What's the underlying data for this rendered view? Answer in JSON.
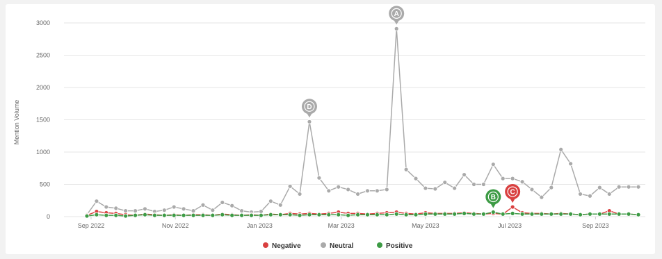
{
  "chart_data": {
    "type": "line",
    "ylabel": "Mention Volume",
    "ylim": [
      0,
      3000
    ],
    "y_ticks": [
      "0",
      "500",
      "1000",
      "1500",
      "2000",
      "2500",
      "3000"
    ],
    "x_ticks": [
      "Sep 2022",
      "Nov 2022",
      "Jan 2023",
      "Mar 2023",
      "May 2023",
      "Jul 2023",
      "Sep 2023"
    ],
    "x_range": [
      "2022-08-29",
      "2023-10-02"
    ],
    "grid": "horizontal",
    "legend": "bottom-center",
    "series": [
      {
        "name": "Neutral",
        "color": "#aaaaaa",
        "x": [
          "2022-08-29",
          "2022-09-05",
          "2022-09-12",
          "2022-09-19",
          "2022-09-26",
          "2022-10-03",
          "2022-10-10",
          "2022-10-17",
          "2022-10-24",
          "2022-10-31",
          "2022-11-07",
          "2022-11-14",
          "2022-11-21",
          "2022-11-28",
          "2022-12-05",
          "2022-12-12",
          "2022-12-19",
          "2022-12-26",
          "2023-01-02",
          "2023-01-09",
          "2023-01-16",
          "2023-01-23",
          "2023-01-30",
          "2023-02-06",
          "2023-02-13",
          "2023-02-20",
          "2023-02-27",
          "2023-03-06",
          "2023-03-13",
          "2023-03-20",
          "2023-03-27",
          "2023-04-03",
          "2023-04-10",
          "2023-04-17",
          "2023-04-24",
          "2023-05-01",
          "2023-05-08",
          "2023-05-15",
          "2023-05-22",
          "2023-05-29",
          "2023-06-05",
          "2023-06-12",
          "2023-06-19",
          "2023-06-26",
          "2023-07-03",
          "2023-07-10",
          "2023-07-17",
          "2023-07-24",
          "2023-07-31",
          "2023-08-07",
          "2023-08-14",
          "2023-08-21",
          "2023-08-28",
          "2023-09-04",
          "2023-09-11",
          "2023-09-18",
          "2023-09-25",
          "2023-10-02"
        ],
        "values": [
          30,
          240,
          150,
          130,
          90,
          90,
          120,
          80,
          100,
          150,
          120,
          90,
          180,
          100,
          220,
          170,
          90,
          70,
          80,
          240,
          180,
          470,
          350,
          1470,
          600,
          400,
          460,
          420,
          350,
          400,
          400,
          420,
          2910,
          730,
          590,
          440,
          430,
          530,
          440,
          650,
          500,
          500,
          810,
          590,
          590,
          540,
          420,
          300,
          450,
          1040,
          820,
          350,
          320,
          450,
          350,
          460,
          460,
          460
        ]
      },
      {
        "name": "Negative",
        "color": "#d94040",
        "x": [
          "2022-08-29",
          "2022-09-05",
          "2022-09-12",
          "2022-09-19",
          "2022-09-26",
          "2022-10-03",
          "2022-10-10",
          "2022-10-17",
          "2022-10-24",
          "2022-10-31",
          "2022-11-07",
          "2022-11-14",
          "2022-11-21",
          "2022-11-28",
          "2022-12-05",
          "2022-12-12",
          "2022-12-19",
          "2022-12-26",
          "2023-01-02",
          "2023-01-09",
          "2023-01-16",
          "2023-01-23",
          "2023-01-30",
          "2023-02-06",
          "2023-02-13",
          "2023-02-20",
          "2023-02-27",
          "2023-03-06",
          "2023-03-13",
          "2023-03-20",
          "2023-03-27",
          "2023-04-03",
          "2023-04-10",
          "2023-04-17",
          "2023-04-24",
          "2023-05-01",
          "2023-05-08",
          "2023-05-15",
          "2023-05-22",
          "2023-05-29",
          "2023-06-05",
          "2023-06-12",
          "2023-06-19",
          "2023-06-26",
          "2023-07-03",
          "2023-07-10",
          "2023-07-17",
          "2023-07-24",
          "2023-07-31",
          "2023-08-07",
          "2023-08-14",
          "2023-08-21",
          "2023-08-28",
          "2023-09-04",
          "2023-09-11",
          "2023-09-18",
          "2023-09-25",
          "2023-10-02"
        ],
        "values": [
          20,
          80,
          60,
          50,
          30,
          20,
          40,
          30,
          20,
          30,
          20,
          30,
          30,
          20,
          40,
          30,
          20,
          30,
          20,
          40,
          30,
          50,
          40,
          50,
          40,
          50,
          70,
          50,
          50,
          40,
          50,
          60,
          70,
          50,
          40,
          60,
          50,
          50,
          50,
          60,
          50,
          40,
          50,
          40,
          150,
          60,
          50,
          50,
          40,
          50,
          40,
          30,
          40,
          40,
          90,
          40,
          40,
          30
        ]
      },
      {
        "name": "Positive",
        "color": "#3d9b45",
        "x": [
          "2022-08-29",
          "2022-09-05",
          "2022-09-12",
          "2022-09-19",
          "2022-09-26",
          "2022-10-03",
          "2022-10-10",
          "2022-10-17",
          "2022-10-24",
          "2022-10-31",
          "2022-11-07",
          "2022-11-14",
          "2022-11-21",
          "2022-11-28",
          "2022-12-05",
          "2022-12-12",
          "2022-12-19",
          "2022-12-26",
          "2023-01-02",
          "2023-01-09",
          "2023-01-16",
          "2023-01-23",
          "2023-01-30",
          "2023-02-06",
          "2023-02-13",
          "2023-02-20",
          "2023-02-27",
          "2023-03-06",
          "2023-03-13",
          "2023-03-20",
          "2023-03-27",
          "2023-04-03",
          "2023-04-10",
          "2023-04-17",
          "2023-04-24",
          "2023-05-01",
          "2023-05-08",
          "2023-05-15",
          "2023-05-22",
          "2023-05-29",
          "2023-06-05",
          "2023-06-12",
          "2023-06-19",
          "2023-06-26",
          "2023-07-03",
          "2023-07-10",
          "2023-07-17",
          "2023-07-24",
          "2023-07-31",
          "2023-08-07",
          "2023-08-14",
          "2023-08-21",
          "2023-08-28",
          "2023-09-04",
          "2023-09-11",
          "2023-09-18",
          "2023-09-25",
          "2023-10-02"
        ],
        "values": [
          10,
          30,
          20,
          20,
          10,
          20,
          30,
          20,
          20,
          20,
          20,
          20,
          20,
          20,
          30,
          20,
          20,
          20,
          20,
          30,
          30,
          30,
          20,
          30,
          30,
          30,
          30,
          20,
          30,
          30,
          30,
          30,
          40,
          30,
          30,
          40,
          40,
          40,
          40,
          50,
          40,
          40,
          70,
          40,
          50,
          40,
          40,
          40,
          40,
          40,
          40,
          30,
          40,
          40,
          40,
          40,
          40,
          30
        ]
      }
    ],
    "annotations": [
      {
        "label": "A",
        "x": "2023-04-10",
        "y": 2910,
        "color": "#aaaaaa"
      },
      {
        "label": "D",
        "x": "2023-02-06",
        "y": 1470,
        "color": "#aaaaaa"
      },
      {
        "label": "B",
        "x": "2023-06-19",
        "y": 70,
        "color": "#3d9b45"
      },
      {
        "label": "C",
        "x": "2023-07-03",
        "y": 150,
        "color": "#d94040"
      }
    ]
  }
}
